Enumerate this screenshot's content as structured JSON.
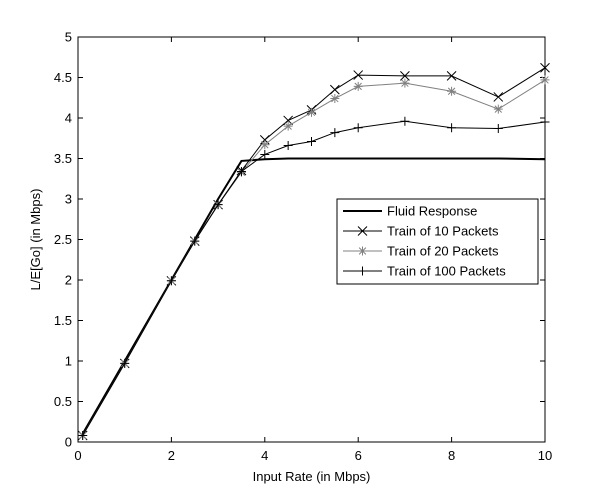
{
  "chart_data": {
    "type": "line",
    "xlabel": "Input Rate (in Mbps)",
    "ylabel": "L/E[Go] (in Mbps)",
    "xlim": [
      0,
      10
    ],
    "ylim": [
      0,
      5
    ],
    "xticks": [
      "0",
      "2",
      "4",
      "6",
      "8",
      "10"
    ],
    "yticks": [
      "0",
      "0.5",
      "1",
      "1.5",
      "2",
      "2.5",
      "3",
      "3.5",
      "4",
      "4.5",
      "5"
    ],
    "grid": false,
    "legend_position": "right",
    "series": [
      {
        "name": "Fluid Response",
        "color": "#000000",
        "marker": "none",
        "x": [
          0.1,
          1,
          2,
          2.5,
          3,
          3.5,
          4,
          4.5,
          5,
          5.5,
          6,
          7,
          8,
          9,
          10
        ],
        "y": [
          0.1,
          1,
          2,
          2.5,
          3,
          3.47,
          3.49,
          3.5,
          3.5,
          3.5,
          3.5,
          3.5,
          3.5,
          3.5,
          3.49
        ]
      },
      {
        "name": "Train of 10 Packets",
        "color": "#000000",
        "marker": "x",
        "x": [
          0.1,
          1,
          2,
          2.5,
          3,
          3.5,
          4,
          4.5,
          5,
          5.5,
          6,
          7,
          8,
          9,
          10
        ],
        "y": [
          0.08,
          0.97,
          1.99,
          2.48,
          2.93,
          3.35,
          3.73,
          3.97,
          4.1,
          4.35,
          4.53,
          4.52,
          4.52,
          4.26,
          4.62
        ]
      },
      {
        "name": "Train of 20 Packets",
        "color": "#808080",
        "marker": "star",
        "x": [
          0.1,
          1,
          2,
          2.5,
          3,
          3.5,
          4,
          4.5,
          5,
          5.5,
          6,
          7,
          8,
          9,
          10
        ],
        "y": [
          0.08,
          0.97,
          1.99,
          2.48,
          2.93,
          3.33,
          3.67,
          3.9,
          4.07,
          4.24,
          4.39,
          4.43,
          4.33,
          4.11,
          4.47
        ]
      },
      {
        "name": "Train of 100 Packets",
        "color": "#000000",
        "marker": "plus",
        "x": [
          0.1,
          1,
          2,
          2.5,
          3,
          3.5,
          4,
          4.5,
          5,
          5.5,
          6,
          7,
          8,
          9,
          10
        ],
        "y": [
          0.08,
          0.97,
          1.99,
          2.48,
          2.93,
          3.34,
          3.55,
          3.66,
          3.71,
          3.82,
          3.88,
          3.96,
          3.88,
          3.87,
          3.95
        ]
      }
    ]
  }
}
